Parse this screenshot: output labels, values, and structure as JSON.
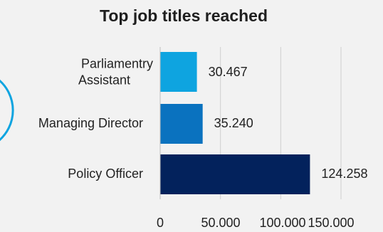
{
  "chart_data": {
    "type": "bar",
    "orientation": "horizontal",
    "title": "Top job titles reached",
    "categories": [
      [
        "Parliamentry",
        "Assistant"
      ],
      [
        "Managing Director"
      ],
      [
        "Policy Officer"
      ]
    ],
    "values": [
      30467,
      35240,
      124258
    ],
    "data_labels": [
      "30.467",
      "35.240",
      "124.258"
    ],
    "bar_colors": [
      "#0ea4e0",
      "#0a72bf",
      "#03225c"
    ],
    "x_ticks": [
      0,
      50000,
      100000,
      150000
    ],
    "x_tick_labels": [
      "0",
      "50.000",
      "100.000",
      "150.000"
    ],
    "xlim": [
      0,
      150000
    ],
    "grid": "vertical",
    "grid_color": "#cfcfcf",
    "accent_arc_color": "#0ea4e0"
  }
}
